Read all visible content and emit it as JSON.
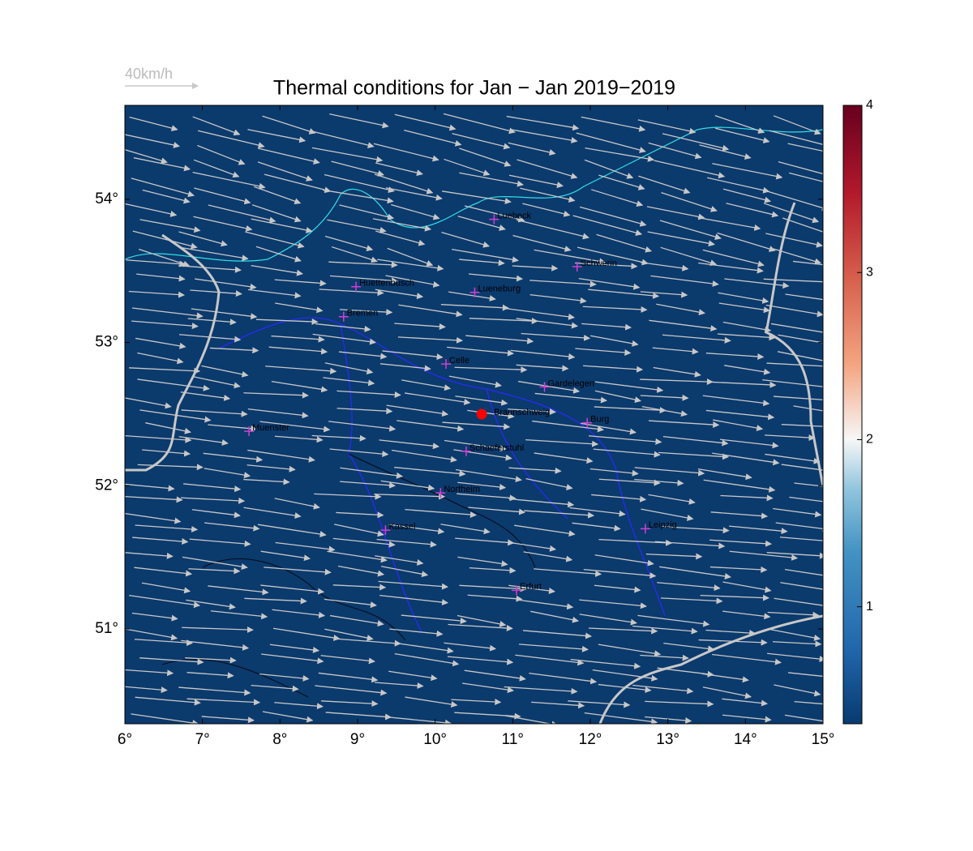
{
  "map": {
    "title": "Thermal conditions for Jan − Jan  2019−2019",
    "scale_label": "40km/h",
    "lonlim": [
      6,
      15
    ],
    "latlim": [
      50.338,
      54.656
    ],
    "lonticks": [
      {
        "value": 6,
        "label": "6°"
      },
      {
        "value": 7,
        "label": "7°"
      },
      {
        "value": 8,
        "label": "8°"
      },
      {
        "value": 9,
        "label": "9°"
      },
      {
        "value": 10,
        "label": "10°"
      },
      {
        "value": 11,
        "label": "11°"
      },
      {
        "value": 12,
        "label": "12°"
      },
      {
        "value": 13,
        "label": "13°"
      },
      {
        "value": 14,
        "label": "14°"
      },
      {
        "value": 15,
        "label": "15°"
      }
    ],
    "latticks": [
      {
        "value": 51,
        "label": "51°"
      },
      {
        "value": 52,
        "label": "52°"
      },
      {
        "value": 53,
        "label": "53°"
      },
      {
        "value": 54,
        "label": "54°"
      }
    ],
    "colorbar": {
      "clim": [
        0.3,
        4
      ],
      "ticks": [
        1,
        2,
        3,
        4
      ]
    },
    "site": {
      "name": "Braunschweig",
      "lon": 10.6,
      "lat": 52.5,
      "color": "#ff0000"
    },
    "cities": [
      {
        "name": "Luebeck",
        "lon": 10.76,
        "lat": 53.86
      },
      {
        "name": "Schwerin",
        "lon": 11.83,
        "lat": 53.53
      },
      {
        "name": "Huettenbusch",
        "lon": 8.98,
        "lat": 53.39
      },
      {
        "name": "Lueneburg",
        "lon": 10.51,
        "lat": 53.35
      },
      {
        "name": "Bremen",
        "lon": 8.82,
        "lat": 53.18
      },
      {
        "name": "Celle",
        "lon": 10.14,
        "lat": 52.85
      },
      {
        "name": "Gardelegen",
        "lon": 11.41,
        "lat": 52.69
      },
      {
        "name": "Burg",
        "lon": 11.96,
        "lat": 52.44
      },
      {
        "name": "Muenster",
        "lon": 7.6,
        "lat": 52.38
      },
      {
        "name": "Schaeferstuhl",
        "lon": 10.4,
        "lat": 52.24
      },
      {
        "name": "Northeim",
        "lon": 10.07,
        "lat": 51.95
      },
      {
        "name": "Kassel",
        "lon": 9.36,
        "lat": 51.69
      },
      {
        "name": "Leipzig",
        "lon": 12.71,
        "lat": 51.7
      },
      {
        "name": "Erfurt",
        "lon": 11.05,
        "lat": 51.27
      }
    ]
  }
}
